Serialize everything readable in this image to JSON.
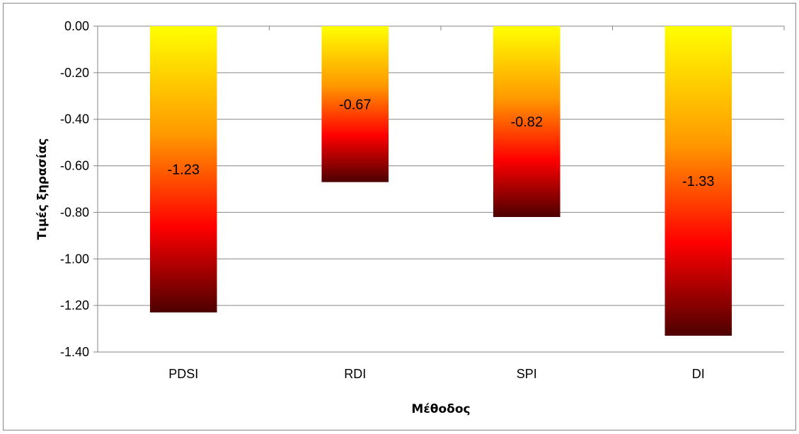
{
  "chart_data": {
    "type": "bar",
    "title": "",
    "xlabel": "Μέθοδος",
    "ylabel": "Τιμές ξηρασίας",
    "categories": [
      "PDSI",
      "RDI",
      "SPI",
      "DI"
    ],
    "values": [
      -1.23,
      -0.67,
      -0.82,
      -1.33
    ],
    "data_labels": [
      "-1.23",
      "-0.67",
      "-0.82",
      "-1.33"
    ],
    "ylim": [
      -1.4,
      0.0
    ],
    "yticks": [
      0.0,
      -0.2,
      -0.4,
      -0.6,
      -0.8,
      -1.0,
      -1.2,
      -1.4
    ],
    "ytick_labels": [
      "0.00",
      "-0.20",
      "-0.40",
      "-0.60",
      "-0.80",
      "-1.00",
      "-1.20",
      "-1.40"
    ],
    "grid": true,
    "legend": false,
    "colors": {
      "bar_top": "#ffff00",
      "bar_upper_mid": "#ff9900",
      "bar_mid": "#ff0000",
      "bar_bottom": "#4d0000",
      "gridline": "#868686",
      "frame": "#868686"
    }
  }
}
